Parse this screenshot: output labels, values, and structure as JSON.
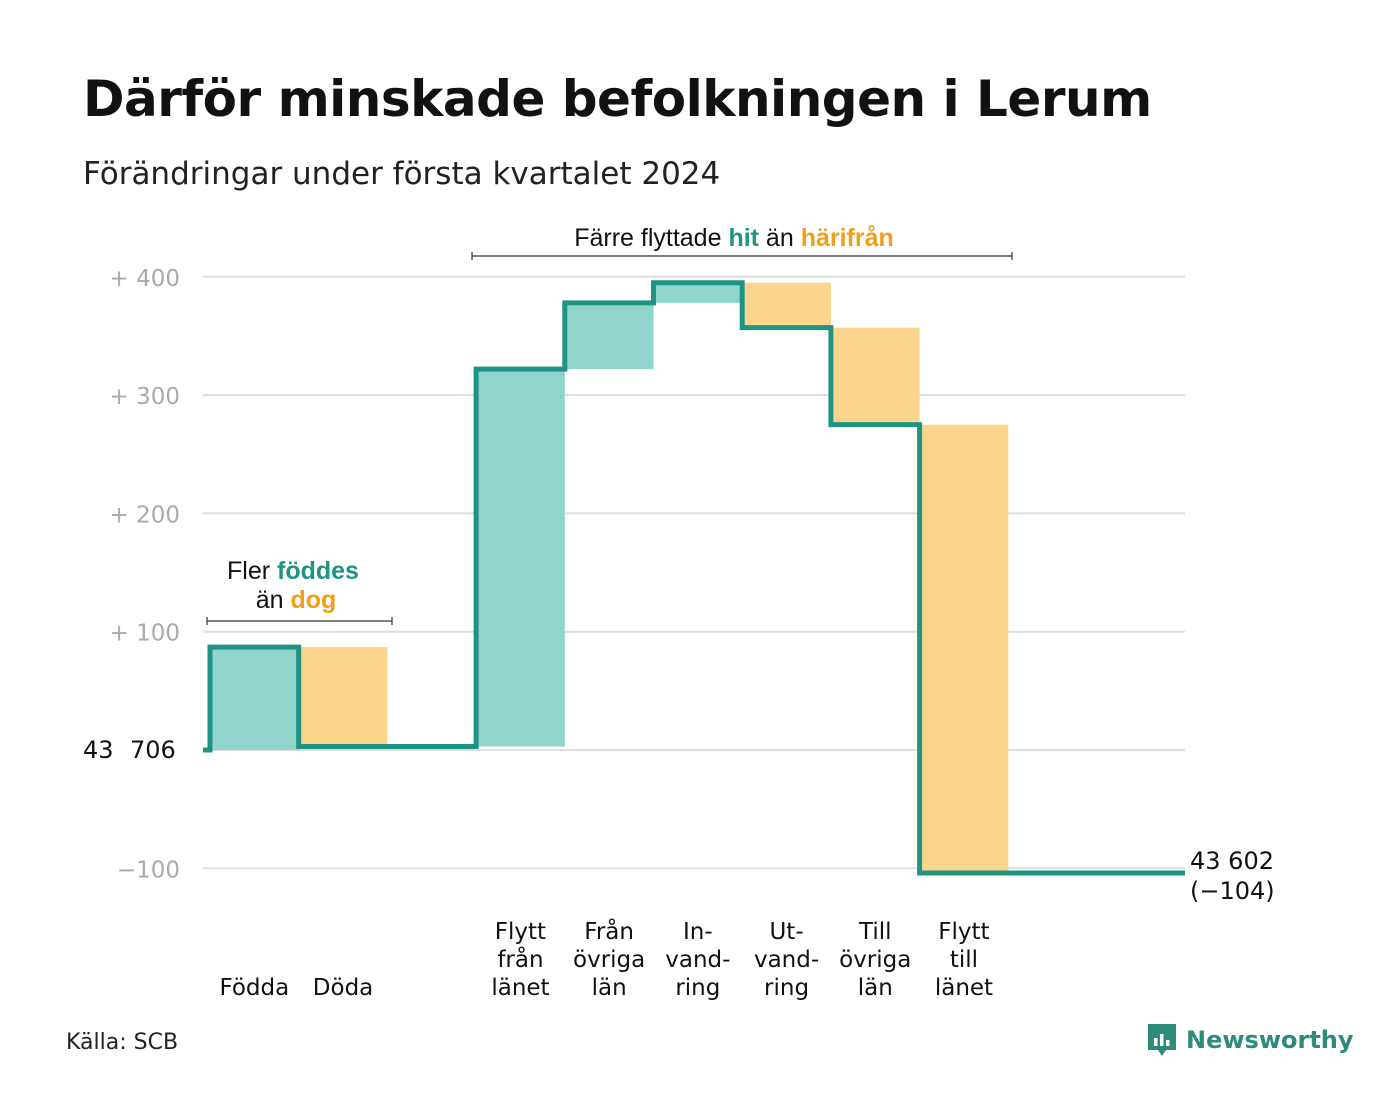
{
  "title": "Därför minskade befolkningen i Lerum",
  "subtitle": "Förändringar under första kvartalet 2024",
  "source": "Källa: SCB",
  "brand": "Newsworthy",
  "colors": {
    "increase_fill": "#8fd5cb",
    "decrease_fill": "#fad58b",
    "line": "#1f9484",
    "teal_text": "#1f9484",
    "orange_text": "#f09e1b",
    "grid": "#dddddd",
    "tick": "#aaaaaa"
  },
  "annotations": {
    "births": {
      "line1_prefix": "Fler",
      "line1_highlight": "föddes",
      "line2_prefix": "än",
      "line2_highlight": "dog"
    },
    "moves": {
      "prefix": "Färre flyttade",
      "highlight1": "hit",
      "middle": "än",
      "highlight2": "härifrån"
    }
  },
  "chart_data": {
    "type": "waterfall",
    "start_value_label": [
      "43",
      "706"
    ],
    "end_value_label": [
      "43 602",
      "(−104)"
    ],
    "start": 0,
    "end": -104,
    "ylim": [
      -100,
      400
    ],
    "yticks": [
      -100,
      0,
      100,
      200,
      300,
      400
    ],
    "ytick_labels": [
      "−100",
      "",
      "+  100",
      "+  200",
      "+  300",
      "+  400"
    ],
    "steps": [
      {
        "label": [
          "Födda"
        ],
        "delta": 87
      },
      {
        "label": [
          "Döda"
        ],
        "delta": -84
      },
      {
        "label": [],
        "delta": 0
      },
      {
        "label": [
          "Flytt",
          "från",
          "länet"
        ],
        "delta": 319
      },
      {
        "label": [
          "Från",
          "övriga",
          "län"
        ],
        "delta": 56
      },
      {
        "label": [
          "In-",
          "vand-",
          "ring"
        ],
        "delta": 17
      },
      {
        "label": [
          "Ut-",
          "vand-",
          "ring"
        ],
        "delta": -38
      },
      {
        "label": [
          "Till",
          "övriga",
          "län"
        ],
        "delta": -82
      },
      {
        "label": [
          "Flytt",
          "till",
          "länet"
        ],
        "delta": -379
      },
      {
        "label": [],
        "delta": 0
      }
    ],
    "grid": true
  }
}
